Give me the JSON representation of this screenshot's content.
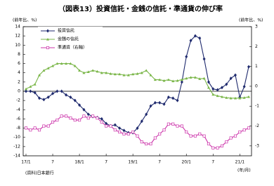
{
  "chart_data": {
    "type": "line",
    "title": "（図表13）投資信託・金銭の信託・準通貨の伸び率",
    "y_label": "(前年比、%)",
    "y2_label": "(前年比、%)",
    "x_label": "(年/月)",
    "source": "(資料)日本銀行",
    "categories": [
      "17/1",
      null,
      null,
      null,
      null,
      null,
      "7",
      null,
      null,
      null,
      null,
      null,
      "18/1",
      null,
      null,
      null,
      null,
      null,
      "7",
      null,
      null,
      null,
      null,
      null,
      "19/1",
      null,
      null,
      null,
      null,
      null,
      "7",
      null,
      null,
      null,
      null,
      null,
      "20/1",
      null,
      null,
      null,
      null,
      null,
      "7",
      null,
      null,
      null,
      null,
      null,
      "21/1",
      null,
      null
    ],
    "ylim": [
      -14,
      14
    ],
    "yticks": [
      -14,
      -12,
      -10,
      -8,
      -6,
      -4,
      -2,
      0,
      2,
      4,
      6,
      8,
      10,
      12,
      14
    ],
    "y2lim": [
      -3.5,
      3
    ],
    "y2ticks": [
      -3,
      -2,
      -1,
      0,
      1,
      2,
      3
    ],
    "grid": false,
    "legend": "upper left",
    "series": [
      {
        "name": "投資信託",
        "color": "#1f2a6e",
        "marker": "diamond",
        "values": [
          0,
          0,
          -0.3,
          -1.5,
          -1.8,
          -1.3,
          -0.5,
          0,
          0,
          -0.8,
          -1.3,
          -2,
          -3,
          -4,
          -5,
          -5.5,
          -5.7,
          -6,
          -7,
          -7.5,
          -7.3,
          -8,
          -8.5,
          -9,
          -9,
          -8,
          -6.5,
          -5,
          -3.2,
          -2.5,
          -2.5,
          -2.8,
          -1.3,
          -1.5,
          -2,
          2,
          7.5,
          11,
          12,
          11.5,
          7,
          2,
          0.5,
          0.3,
          0.8,
          1.5,
          2.8,
          3.5,
          -1.3,
          1,
          5.3
        ]
      },
      {
        "name": "金銭の信託",
        "color": "#7ab648",
        "marker": "triangle",
        "values": [
          0.5,
          1,
          1.5,
          3.5,
          4.5,
          5,
          5.5,
          6,
          6,
          6,
          6,
          5.5,
          4.5,
          4,
          4.2,
          4.5,
          4.3,
          4,
          4,
          3.8,
          3.7,
          3.7,
          3.5,
          3.5,
          3.7,
          3.8,
          4,
          4.5,
          3.5,
          2.5,
          2.5,
          2.3,
          2.5,
          2.2,
          2.3,
          2.5,
          2.8,
          3,
          3,
          2.7,
          2.8,
          0.8,
          -0.7,
          -1,
          -1.2,
          -1.4,
          -1.5,
          -1.5,
          -1.5,
          -1.4,
          -1.2
        ]
      },
      {
        "name": "準通貨（右軸）",
        "color": "#cc33aa",
        "marker": "square",
        "axis": "y2",
        "values": [
          -2.1,
          -2.2,
          -2.1,
          -2.2,
          -2.0,
          -2.0,
          -1.8,
          -1.7,
          -1.5,
          -1.5,
          -1.6,
          -1.7,
          -1.7,
          -1.5,
          -1.6,
          -1.5,
          -1.6,
          -1.8,
          -2.0,
          -2.0,
          -2.2,
          -2.3,
          -2.4,
          -2.4,
          -2.3,
          -2.5,
          -2.8,
          -2.9,
          -2.9,
          -2.6,
          -2.4,
          -2.2,
          -1.9,
          -1.9,
          -2.0,
          -2.0,
          -2.3,
          -2.5,
          -2.5,
          -2.4,
          -2.5,
          -2.9,
          -3.1,
          -3.1,
          -3.0,
          -2.8,
          -2.6,
          -2.5,
          -2.3,
          -2.2,
          -2.1
        ]
      }
    ]
  }
}
